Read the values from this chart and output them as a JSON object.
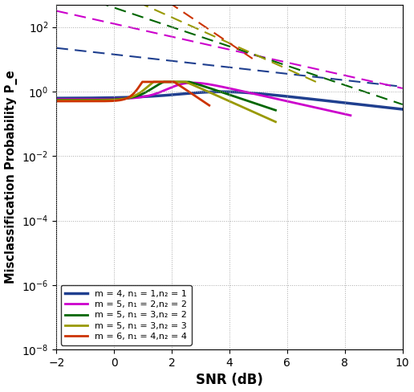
{
  "xlabel": "SNR (dB)",
  "ylabel": "Misclassification Probability P_e",
  "xlim": [
    -2,
    10
  ],
  "ylim": [
    1e-08,
    500
  ],
  "yticks": [
    1e-08,
    1e-06,
    0.0001,
    0.01,
    1.0,
    100.0
  ],
  "xticks": [
    -2,
    0,
    2,
    4,
    6,
    8,
    10
  ],
  "dashed_params": [
    {
      "d": 1,
      "log10C": 1.15,
      "color": "#1f3f8f",
      "xrange": [
        -2,
        10
      ]
    },
    {
      "d": 2,
      "log10C": 2.1,
      "color": "#cc00cc",
      "xrange": [
        -2,
        10
      ]
    },
    {
      "d": 3,
      "log10C": 2.6,
      "color": "#006600",
      "xrange": [
        -2,
        10
      ]
    },
    {
      "d": 4,
      "log10C": 3.1,
      "color": "#999900",
      "xrange": [
        -2,
        7.0
      ]
    },
    {
      "d": 6,
      "log10C": 3.9,
      "color": "#cc3300",
      "xrange": [
        -2,
        4.8
      ]
    }
  ],
  "sim_params": [
    {
      "d": 1,
      "knee": 3.0,
      "log10C": 0.45,
      "Pe_low": 0.62,
      "color": "#1f3f8f",
      "xrange": [
        -2,
        10
      ],
      "label": "m = 4, n₁ = 1,n₂ = 1",
      "lw": 2.5,
      "sharpness": 1.2
    },
    {
      "d": 2,
      "knee": 2.0,
      "log10C": 0.9,
      "Pe_low": 0.58,
      "color": "#cc00cc",
      "xrange": [
        -2,
        8.2
      ],
      "label": "m = 5, n₁ = 2,n₂ = 2",
      "lw": 2.0,
      "sharpness": 2.5
    },
    {
      "d": 3,
      "knee": 1.5,
      "log10C": 1.1,
      "Pe_low": 0.55,
      "color": "#006600",
      "xrange": [
        -2,
        5.6
      ],
      "label": "m = 5, n₁ = 3,n₂ = 2",
      "lw": 2.0,
      "sharpness": 3.0
    },
    {
      "d": 4,
      "knee": 1.3,
      "log10C": 1.3,
      "Pe_low": 0.53,
      "color": "#999900",
      "xrange": [
        -2,
        5.6
      ],
      "label": "m = 5, n₁ = 3,n₂ = 3",
      "lw": 2.0,
      "sharpness": 3.5
    },
    {
      "d": 6,
      "knee": 1.0,
      "log10C": 1.55,
      "Pe_low": 0.5,
      "color": "#cc3300",
      "xrange": [
        -2,
        3.3
      ],
      "label": "m = 6, n₁ = 4,n₂ = 4",
      "lw": 2.0,
      "sharpness": 5.0
    }
  ]
}
